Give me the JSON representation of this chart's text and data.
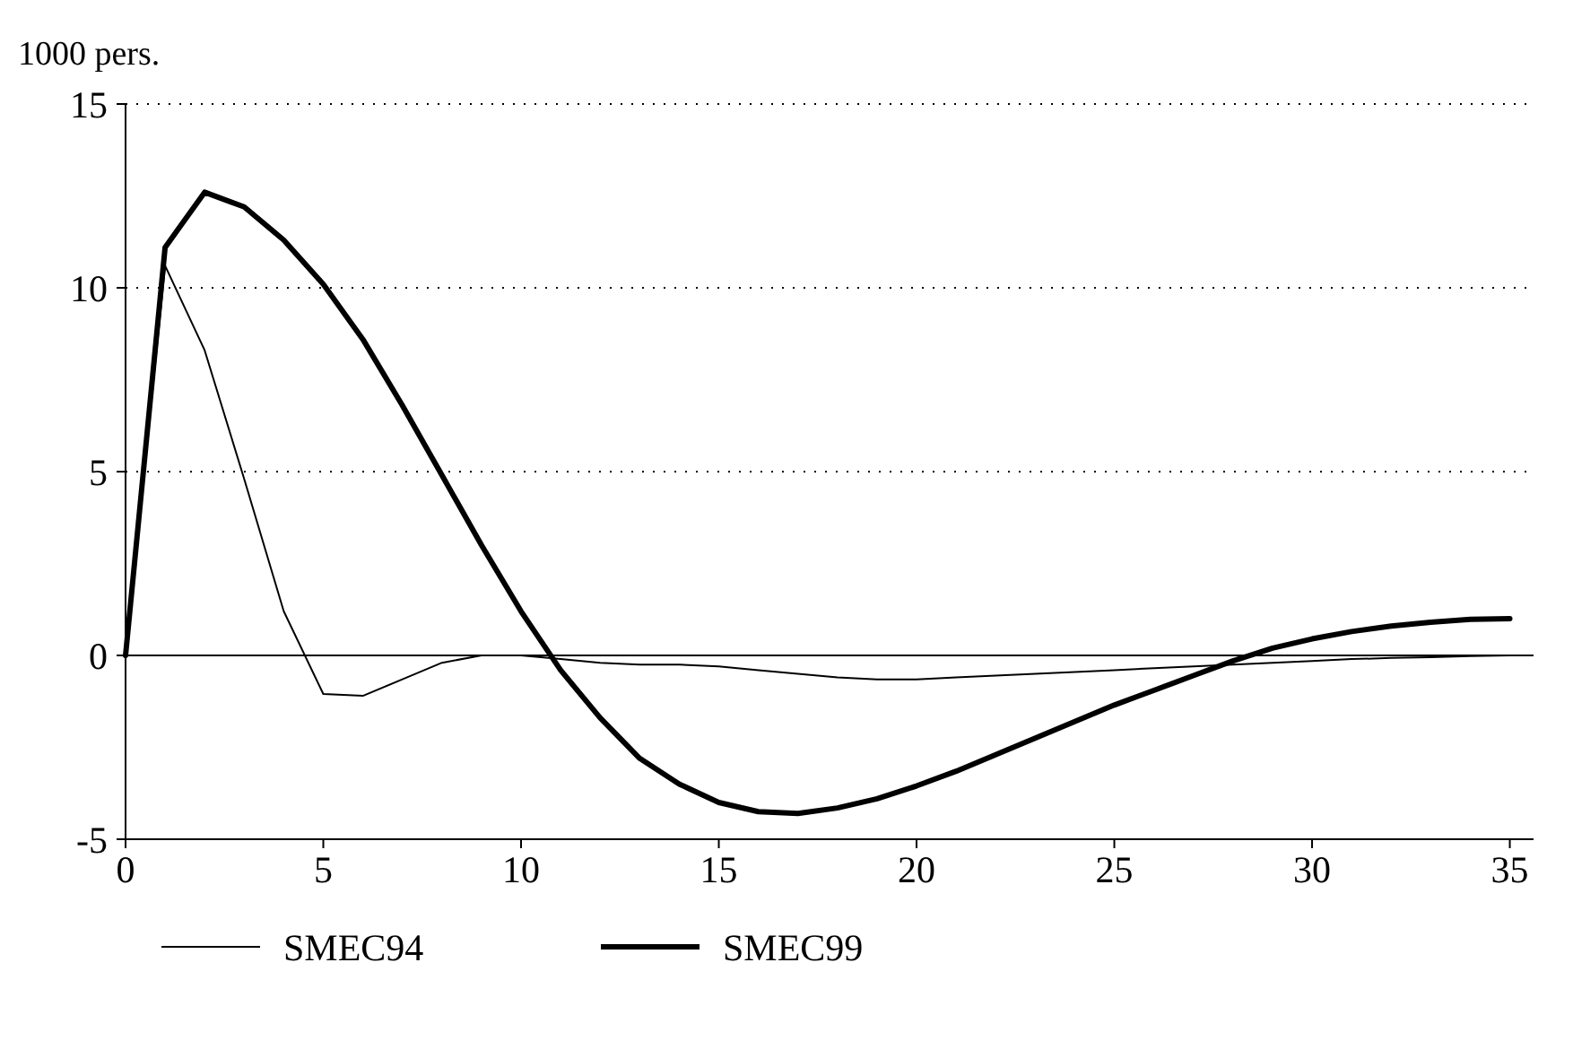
{
  "chart_data": {
    "type": "line",
    "ylabel": "1000 pers.",
    "x": [
      0,
      1,
      2,
      3,
      4,
      5,
      6,
      7,
      8,
      9,
      10,
      11,
      12,
      13,
      14,
      15,
      16,
      17,
      18,
      19,
      20,
      21,
      22,
      23,
      24,
      25,
      26,
      27,
      28,
      29,
      30,
      31,
      32,
      33,
      34,
      35
    ],
    "series": [
      {
        "name": "SMEC94",
        "color": "#000000",
        "values": [
          0,
          10.6,
          8.3,
          4.8,
          1.2,
          -1.05,
          -1.1,
          -0.65,
          -0.2,
          0,
          0,
          -0.1,
          -0.2,
          -0.25,
          -0.25,
          -0.3,
          -0.4,
          -0.5,
          -0.6,
          -0.65,
          -0.65,
          -0.6,
          -0.55,
          -0.5,
          -0.45,
          -0.4,
          -0.35,
          -0.3,
          -0.25,
          -0.2,
          -0.15,
          -0.1,
          -0.07,
          -0.05,
          -0.02,
          0
        ]
      },
      {
        "name": "SMEC99",
        "color": "#000000",
        "values": [
          0,
          11.1,
          12.6,
          12.2,
          11.3,
          10.1,
          8.6,
          6.8,
          4.9,
          3.0,
          1.2,
          -0.4,
          -1.7,
          -2.8,
          -3.5,
          -4.0,
          -4.25,
          -4.3,
          -4.15,
          -3.9,
          -3.55,
          -3.15,
          -2.7,
          -2.25,
          -1.8,
          -1.35,
          -0.95,
          -0.55,
          -0.15,
          0.2,
          0.45,
          0.65,
          0.8,
          0.9,
          0.98,
          1.0
        ]
      }
    ],
    "xlim": [
      0,
      35.6
    ],
    "xticks": [
      0,
      5,
      10,
      15,
      20,
      25,
      30,
      35
    ],
    "ylim": [
      -5,
      15
    ],
    "yticks": [
      -5,
      0,
      5,
      10,
      15
    ],
    "grid": "y",
    "legend": "bottom",
    "marker": "none",
    "line_style": "solid",
    "ref_lines": [
      {
        "axis": "y",
        "value": 0,
        "color": "#000000"
      }
    ]
  }
}
